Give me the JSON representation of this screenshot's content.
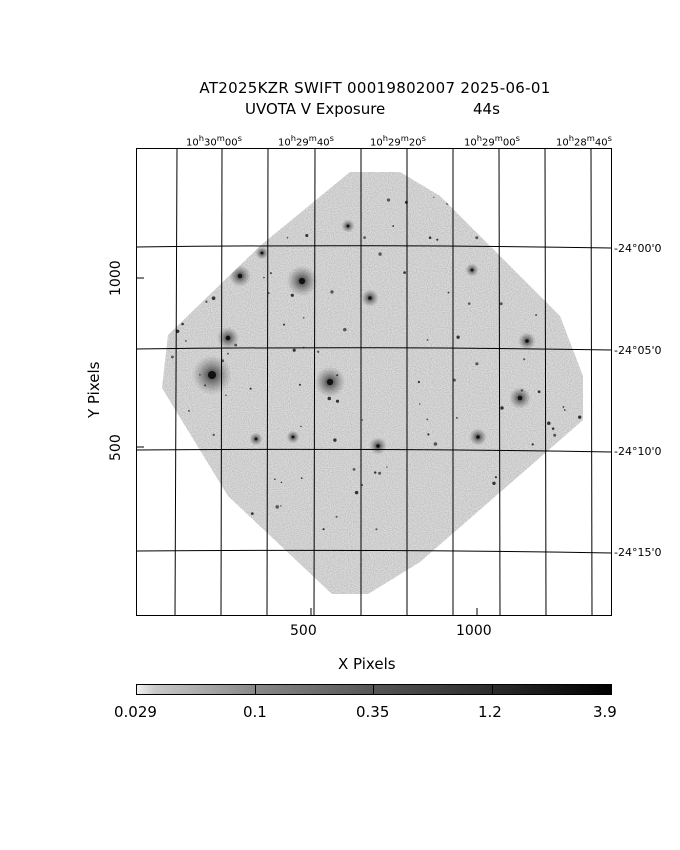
{
  "title": {
    "line1": "AT2025KZR SWIFT 00019802007 2025-06-01",
    "line2_left": "UVOTA V Exposure",
    "line2_right": "44s"
  },
  "ra_labels": [
    {
      "h": "10",
      "m": "30",
      "s": "00"
    },
    {
      "h": "10",
      "m": "29",
      "s": "40"
    },
    {
      "h": "10",
      "m": "29",
      "s": "20"
    },
    {
      "h": "10",
      "m": "29",
      "s": "00"
    },
    {
      "h": "10",
      "m": "28",
      "s": "40"
    }
  ],
  "dec_labels": [
    {
      "d": "-24",
      "m": "00",
      "s": "0"
    },
    {
      "d": "-24",
      "m": "05",
      "s": "0"
    },
    {
      "d": "-24",
      "m": "10",
      "s": "0"
    },
    {
      "d": "-24",
      "m": "15",
      "s": "0"
    }
  ],
  "x_ticks": [
    "500",
    "1000"
  ],
  "y_ticks": [
    "1000",
    "500"
  ],
  "xlabel": "X Pixels",
  "ylabel": "Y Pixels",
  "colorbar": {
    "labels": [
      "0.029",
      "0.1",
      "0.35",
      "1.2",
      "3.9"
    ]
  }
}
